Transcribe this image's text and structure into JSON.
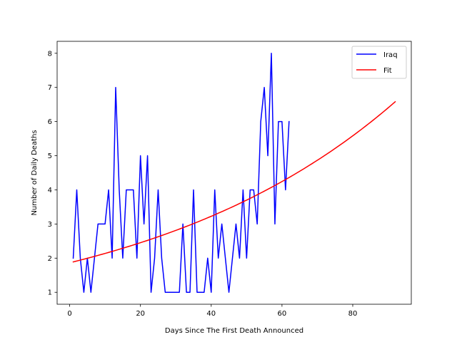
{
  "chart_data": {
    "type": "line",
    "title": "",
    "xlabel": "Days Since The First Death Announced",
    "ylabel": "Number of Daily Deaths",
    "xlim": [
      -3.55,
      96.55
    ],
    "ylim": [
      0.65,
      8.35
    ],
    "xticks": [
      0,
      20,
      40,
      60,
      80
    ],
    "yticks": [
      1,
      2,
      3,
      4,
      5,
      6,
      7,
      8
    ],
    "grid": false,
    "legend_position": "top-right",
    "series": [
      {
        "name": "Iraq",
        "color": "#0000ff",
        "x": [
          1,
          2,
          3,
          4,
          5,
          6,
          7,
          8,
          9,
          10,
          11,
          12,
          13,
          14,
          15,
          16,
          17,
          18,
          19,
          20,
          21,
          22,
          23,
          24,
          25,
          26,
          27,
          28,
          29,
          30,
          31,
          32,
          33,
          34,
          35,
          36,
          37,
          38,
          39,
          40,
          41,
          42,
          43,
          44,
          45,
          46,
          47,
          48,
          49,
          50,
          51,
          52,
          53,
          54,
          55,
          56,
          57,
          58,
          59,
          60,
          61,
          62
        ],
        "y": [
          2,
          4,
          2,
          1,
          2,
          1,
          2,
          3,
          3,
          3,
          4,
          2,
          7,
          4,
          2,
          4,
          4,
          4,
          2,
          5,
          3,
          5,
          1,
          2,
          4,
          2,
          1,
          1,
          1,
          1,
          1,
          3,
          1,
          1,
          4,
          1,
          1,
          1,
          2,
          1,
          4,
          2,
          3,
          2,
          1,
          2,
          3,
          2,
          4,
          2,
          4,
          4,
          3,
          6,
          7,
          5,
          8,
          3,
          6,
          6,
          4,
          6
        ]
      },
      {
        "name": "Fit",
        "color": "#ff0000",
        "curve": "exponential",
        "x_range": [
          1,
          92
        ],
        "y_start": 1.89,
        "y_end": 6.58
      }
    ]
  }
}
